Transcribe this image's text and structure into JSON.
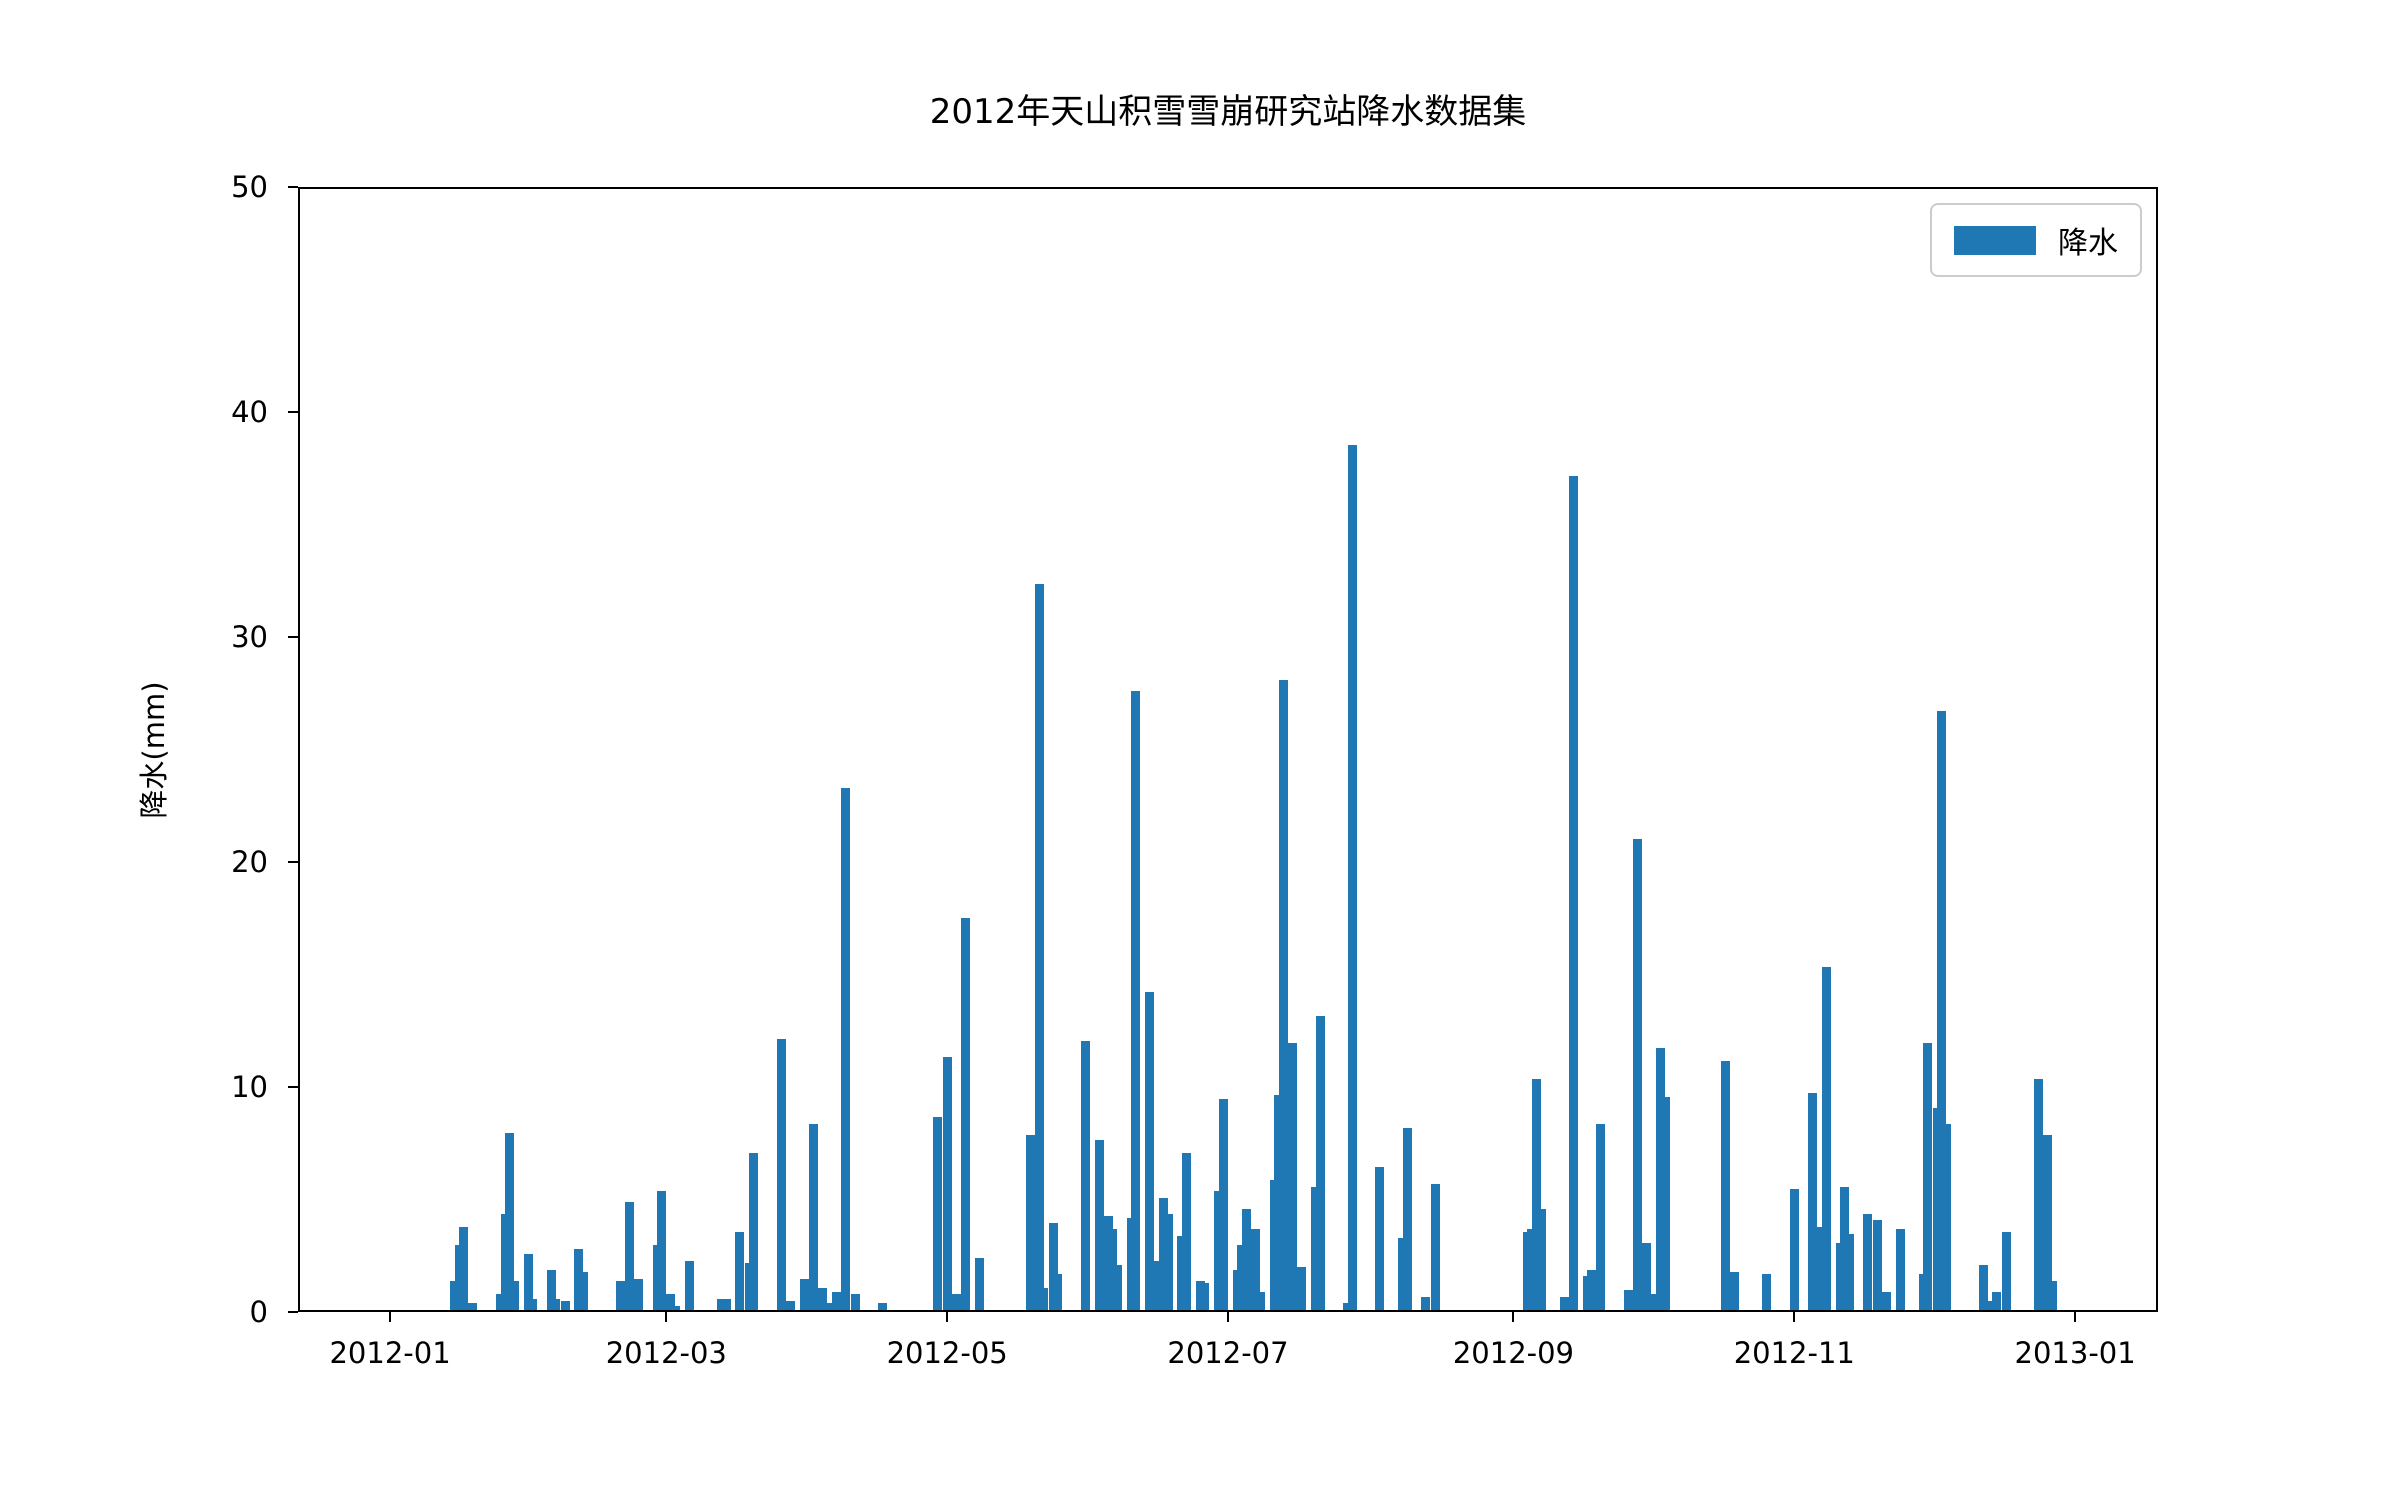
{
  "figure": {
    "background": "#ffffff",
    "axis_color": "#000000"
  },
  "chart_data": {
    "type": "bar",
    "title": "2012年天山积雪雪崩研究站降水数据集",
    "xlabel": "",
    "ylabel": "降水(mm)",
    "ylim": [
      0,
      50
    ],
    "grid": false,
    "legend_position": "upper right",
    "legend": {
      "label": "降水",
      "color": "#1f77b4"
    },
    "bar_color": "#1f77b4",
    "y_ticks": [
      0,
      10,
      20,
      30,
      40,
      50
    ],
    "x_ticks": [
      {
        "label": "2012-01",
        "date": "2012-01-01"
      },
      {
        "label": "2012-03",
        "date": "2012-03-01"
      },
      {
        "label": "2012-05",
        "date": "2012-05-01"
      },
      {
        "label": "2012-07",
        "date": "2012-07-01"
      },
      {
        "label": "2012-09",
        "date": "2012-09-01"
      },
      {
        "label": "2012-11",
        "date": "2012-11-01"
      },
      {
        "label": "2013-01",
        "date": "2013-01-01"
      }
    ],
    "x_range": {
      "start": "2011-12-12",
      "end": "2013-01-19"
    },
    "bars": [
      {
        "date": "2012-01-15",
        "value": 1.3
      },
      {
        "date": "2012-01-16",
        "value": 2.9
      },
      {
        "date": "2012-01-17",
        "value": 3.7
      },
      {
        "date": "2012-01-19",
        "value": 0.3
      },
      {
        "date": "2012-01-25",
        "value": 0.7
      },
      {
        "date": "2012-01-26",
        "value": 4.3
      },
      {
        "date": "2012-01-27",
        "value": 7.9
      },
      {
        "date": "2012-01-28",
        "value": 1.3
      },
      {
        "date": "2012-01-31",
        "value": 2.5
      },
      {
        "date": "2012-02-01",
        "value": 0.5
      },
      {
        "date": "2012-02-05",
        "value": 1.8
      },
      {
        "date": "2012-02-06",
        "value": 0.5
      },
      {
        "date": "2012-02-08",
        "value": 0.4
      },
      {
        "date": "2012-02-11",
        "value": 2.7
      },
      {
        "date": "2012-02-12",
        "value": 1.7
      },
      {
        "date": "2012-02-20",
        "value": 1.3
      },
      {
        "date": "2012-02-22",
        "value": 4.8
      },
      {
        "date": "2012-02-24",
        "value": 1.4
      },
      {
        "date": "2012-02-28",
        "value": 2.9
      },
      {
        "date": "2012-02-29",
        "value": 5.3
      },
      {
        "date": "2012-03-02",
        "value": 0.7
      },
      {
        "date": "2012-03-03",
        "value": 0.2
      },
      {
        "date": "2012-03-06",
        "value": 2.2
      },
      {
        "date": "2012-03-13",
        "value": 0.5
      },
      {
        "date": "2012-03-14",
        "value": 0.5
      },
      {
        "date": "2012-03-17",
        "value": 3.5
      },
      {
        "date": "2012-03-19",
        "value": 2.1
      },
      {
        "date": "2012-03-20",
        "value": 7.0
      },
      {
        "date": "2012-03-26",
        "value": 12.1
      },
      {
        "date": "2012-03-28",
        "value": 0.4
      },
      {
        "date": "2012-03-31",
        "value": 1.4
      },
      {
        "date": "2012-04-02",
        "value": 8.3
      },
      {
        "date": "2012-04-04",
        "value": 1.0
      },
      {
        "date": "2012-04-05",
        "value": 0.3
      },
      {
        "date": "2012-04-07",
        "value": 0.8
      },
      {
        "date": "2012-04-09",
        "value": 23.3
      },
      {
        "date": "2012-04-11",
        "value": 0.7
      },
      {
        "date": "2012-04-17",
        "value": 0.3
      },
      {
        "date": "2012-04-29",
        "value": 8.6
      },
      {
        "date": "2012-05-01",
        "value": 11.3
      },
      {
        "date": "2012-05-03",
        "value": 0.7
      },
      {
        "date": "2012-05-05",
        "value": 17.5
      },
      {
        "date": "2012-05-08",
        "value": 2.3
      },
      {
        "date": "2012-05-19",
        "value": 7.8
      },
      {
        "date": "2012-05-21",
        "value": 32.4
      },
      {
        "date": "2012-05-22",
        "value": 1.0
      },
      {
        "date": "2012-05-24",
        "value": 3.9
      },
      {
        "date": "2012-05-25",
        "value": 1.6
      },
      {
        "date": "2012-05-31",
        "value": 12.0
      },
      {
        "date": "2012-06-03",
        "value": 7.6
      },
      {
        "date": "2012-06-05",
        "value": 4.2
      },
      {
        "date": "2012-06-06",
        "value": 3.6
      },
      {
        "date": "2012-06-07",
        "value": 2.0
      },
      {
        "date": "2012-06-10",
        "value": 4.1
      },
      {
        "date": "2012-06-11",
        "value": 27.6
      },
      {
        "date": "2012-06-14",
        "value": 14.2
      },
      {
        "date": "2012-06-16",
        "value": 2.2
      },
      {
        "date": "2012-06-17",
        "value": 5.0
      },
      {
        "date": "2012-06-18",
        "value": 4.3
      },
      {
        "date": "2012-06-21",
        "value": 3.3
      },
      {
        "date": "2012-06-22",
        "value": 7.0
      },
      {
        "date": "2012-06-25",
        "value": 1.3
      },
      {
        "date": "2012-06-26",
        "value": 1.2
      },
      {
        "date": "2012-06-29",
        "value": 5.3
      },
      {
        "date": "2012-06-30",
        "value": 9.4
      },
      {
        "date": "2012-07-03",
        "value": 1.8
      },
      {
        "date": "2012-07-04",
        "value": 2.9
      },
      {
        "date": "2012-07-05",
        "value": 4.5
      },
      {
        "date": "2012-07-07",
        "value": 3.6
      },
      {
        "date": "2012-07-08",
        "value": 0.8
      },
      {
        "date": "2012-07-11",
        "value": 5.8
      },
      {
        "date": "2012-07-12",
        "value": 9.6
      },
      {
        "date": "2012-07-13",
        "value": 28.1
      },
      {
        "date": "2012-07-15",
        "value": 11.9
      },
      {
        "date": "2012-07-17",
        "value": 1.9
      },
      {
        "date": "2012-07-20",
        "value": 5.5
      },
      {
        "date": "2012-07-21",
        "value": 13.1
      },
      {
        "date": "2012-07-27",
        "value": 0.3
      },
      {
        "date": "2012-07-28",
        "value": 38.6
      },
      {
        "date": "2012-08-03",
        "value": 6.4
      },
      {
        "date": "2012-08-08",
        "value": 3.2
      },
      {
        "date": "2012-08-09",
        "value": 8.1
      },
      {
        "date": "2012-08-13",
        "value": 0.6
      },
      {
        "date": "2012-08-15",
        "value": 5.6
      },
      {
        "date": "2012-09-04",
        "value": 3.5
      },
      {
        "date": "2012-09-05",
        "value": 3.6
      },
      {
        "date": "2012-09-06",
        "value": 10.3
      },
      {
        "date": "2012-09-07",
        "value": 4.5
      },
      {
        "date": "2012-09-12",
        "value": 0.6
      },
      {
        "date": "2012-09-14",
        "value": 37.2
      },
      {
        "date": "2012-09-17",
        "value": 1.5
      },
      {
        "date": "2012-09-18",
        "value": 1.8
      },
      {
        "date": "2012-09-20",
        "value": 8.3
      },
      {
        "date": "2012-09-26",
        "value": 0.9
      },
      {
        "date": "2012-09-28",
        "value": 21.0
      },
      {
        "date": "2012-09-30",
        "value": 3.0
      },
      {
        "date": "2012-10-01",
        "value": 0.7
      },
      {
        "date": "2012-10-03",
        "value": 11.7
      },
      {
        "date": "2012-10-04",
        "value": 9.5
      },
      {
        "date": "2012-10-17",
        "value": 11.1
      },
      {
        "date": "2012-10-19",
        "value": 1.7
      },
      {
        "date": "2012-10-26",
        "value": 1.6
      },
      {
        "date": "2012-11-01",
        "value": 5.4
      },
      {
        "date": "2012-11-05",
        "value": 9.7
      },
      {
        "date": "2012-11-06",
        "value": 3.7
      },
      {
        "date": "2012-11-08",
        "value": 15.3
      },
      {
        "date": "2012-11-11",
        "value": 3.0
      },
      {
        "date": "2012-11-12",
        "value": 5.5
      },
      {
        "date": "2012-11-13",
        "value": 3.4
      },
      {
        "date": "2012-11-17",
        "value": 4.3
      },
      {
        "date": "2012-11-19",
        "value": 4.0
      },
      {
        "date": "2012-11-21",
        "value": 0.8
      },
      {
        "date": "2012-11-24",
        "value": 3.6
      },
      {
        "date": "2012-11-29",
        "value": 1.6
      },
      {
        "date": "2012-11-30",
        "value": 11.9
      },
      {
        "date": "2012-12-02",
        "value": 9.0
      },
      {
        "date": "2012-12-03",
        "value": 26.7
      },
      {
        "date": "2012-12-04",
        "value": 8.3
      },
      {
        "date": "2012-12-12",
        "value": 2.0
      },
      {
        "date": "2012-12-14",
        "value": 0.4
      },
      {
        "date": "2012-12-15",
        "value": 0.8
      },
      {
        "date": "2012-12-17",
        "value": 3.5
      },
      {
        "date": "2012-12-24",
        "value": 10.3
      },
      {
        "date": "2012-12-26",
        "value": 7.8
      },
      {
        "date": "2012-12-27",
        "value": 1.3
      }
    ]
  }
}
